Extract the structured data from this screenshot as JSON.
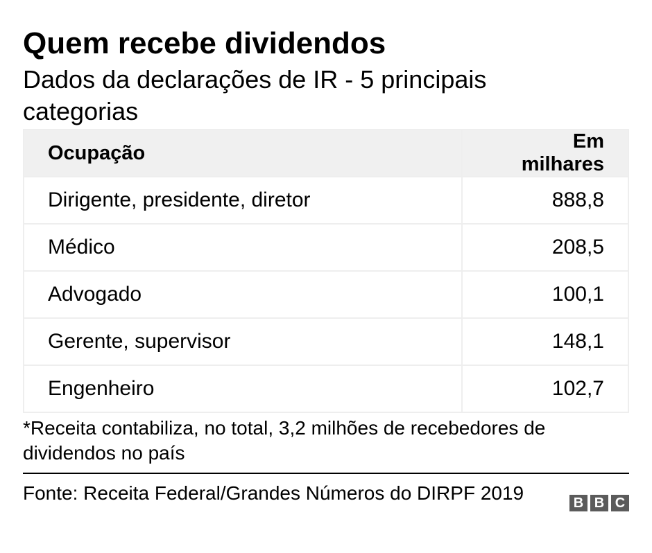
{
  "header": {
    "title": "Quem recebe dividendos",
    "subtitle": "Dados da declarações de IR - 5 principais categorias"
  },
  "table": {
    "columns": [
      "Ocupação",
      "Em milhares"
    ],
    "rows": [
      {
        "occupation": "Dirigente, presidente, diretor",
        "value": "888,8"
      },
      {
        "occupation": "Médico",
        "value": "208,5"
      },
      {
        "occupation": "Advogado",
        "value": "100,1"
      },
      {
        "occupation": "Gerente, supervisor",
        "value": "148,1"
      },
      {
        "occupation": "Engenheiro",
        "value": "102,7"
      }
    ]
  },
  "footnote": "*Receita contabiliza, no total, 3,2 milhões de recebedores de dividendos no país",
  "source": "Fonte: Receita Federal/Grandes Números do DIRPF 2019",
  "logo": {
    "letters": [
      "B",
      "B",
      "C"
    ],
    "color": "#5b5b5b"
  },
  "chart_data": {
    "type": "table",
    "title": "Quem recebe dividendos",
    "subtitle": "Dados da declarações de IR - 5 principais categorias",
    "columns": [
      "Ocupação",
      "Em milhares"
    ],
    "categories": [
      "Dirigente, presidente, diretor",
      "Médico",
      "Advogado",
      "Gerente, supervisor",
      "Engenheiro"
    ],
    "values": [
      888.8,
      208.5,
      100.1,
      148.1,
      102.7
    ]
  }
}
